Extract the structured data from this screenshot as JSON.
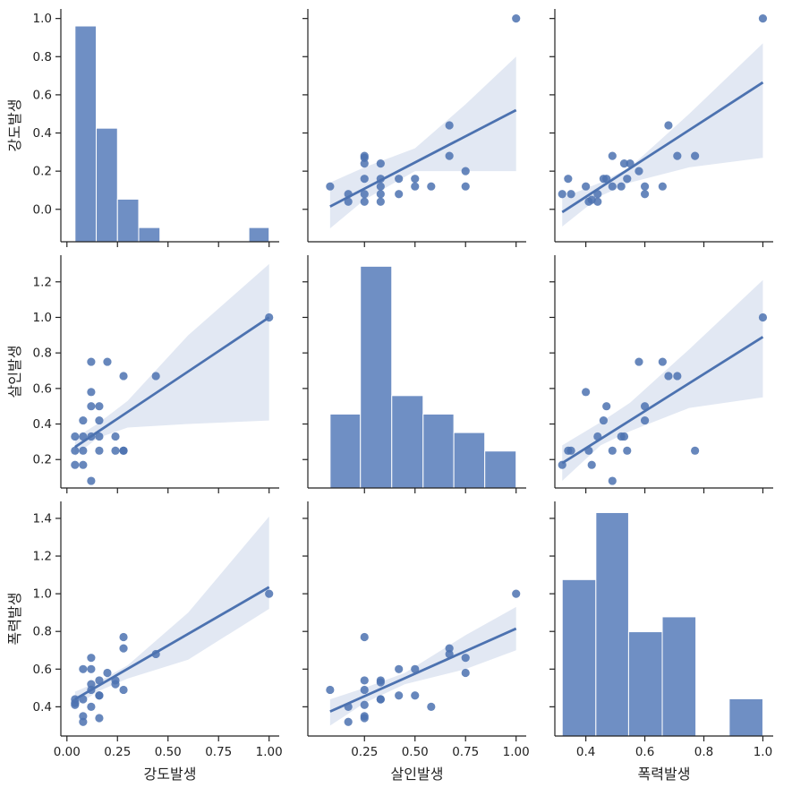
{
  "chart_data": {
    "type": "pairplot",
    "variables": [
      "강도발생",
      "살인발생",
      "폭력발생"
    ],
    "colors": {
      "point": "#4c72b0",
      "bar": "#6f8fc4",
      "band": "#e2e8f3",
      "line": "#4c72b0",
      "axis": "#222222"
    },
    "axes": {
      "강도발생": {
        "label": "강도발생",
        "range": [
          -0.03,
          1.05
        ],
        "ticks": [
          0.0,
          0.25,
          0.5,
          0.75,
          1.0
        ],
        "tick_labels": [
          "0.00",
          "0.25",
          "0.50",
          "0.75",
          "1.00"
        ]
      },
      "살인발생": {
        "label": "살인발생",
        "range": [
          -0.03,
          1.05
        ],
        "ticks": [
          0.25,
          0.5,
          0.75,
          1.0
        ],
        "tick_labels": [
          "0.25",
          "0.50",
          "0.75",
          "1.00"
        ]
      },
      "폭력발생": {
        "label": "폭력발생",
        "range": [
          0.295,
          1.035
        ],
        "ticks": [
          0.4,
          0.6,
          0.8,
          1.0
        ],
        "tick_labels": [
          "0.4",
          "0.6",
          "0.8",
          "1.0"
        ]
      }
    },
    "y_axes": [
      {
        "label": "강도발생",
        "range": [
          -0.17,
          1.05
        ],
        "ticks": [
          0.0,
          0.2,
          0.4,
          0.6,
          0.8,
          1.0
        ],
        "tick_labels": [
          "0.0",
          "0.2",
          "0.4",
          "0.6",
          "0.8",
          "1.0"
        ]
      },
      {
        "label": "살인발생",
        "range": [
          0.04,
          1.35
        ],
        "ticks": [
          0.2,
          0.4,
          0.6,
          0.8,
          1.0,
          1.2
        ],
        "tick_labels": [
          "0.2",
          "0.4",
          "0.6",
          "0.8",
          "1.0",
          "1.2"
        ]
      },
      {
        "label": "폭력발생",
        "range": [
          0.245,
          1.49
        ],
        "ticks": [
          0.4,
          0.6,
          0.8,
          1.0,
          1.2,
          1.4
        ],
        "tick_labels": [
          "0.4",
          "0.6",
          "0.8",
          "1.0",
          "1.2",
          "1.4"
        ]
      }
    ],
    "histograms": [
      {
        "variable": "강도발생",
        "bins": [
          [
            0.04,
            0.145,
            7.6
          ],
          [
            0.145,
            0.25,
            4.0
          ],
          [
            0.25,
            0.355,
            1.5
          ],
          [
            0.355,
            0.46,
            0.5
          ],
          [
            0.9,
            1.0,
            0.5
          ]
        ],
        "count_range": [
          0,
          8.2
        ]
      },
      {
        "variable": "살인발생",
        "bins": [
          [
            0.08,
            0.23,
            4.0
          ],
          [
            0.23,
            0.385,
            12.0
          ],
          [
            0.385,
            0.54,
            5.0
          ],
          [
            0.54,
            0.692,
            4.0
          ],
          [
            0.692,
            0.845,
            3.0
          ],
          [
            0.845,
            1.0,
            2.0
          ]
        ],
        "count_range": [
          0,
          12.6
        ]
      },
      {
        "variable": "폭력발생",
        "bins": [
          [
            0.32,
            0.434,
            4.2
          ],
          [
            0.434,
            0.545,
            6.0
          ],
          [
            0.545,
            0.659,
            2.8
          ],
          [
            0.659,
            0.773,
            3.2
          ],
          [
            0.886,
            1.0,
            1.0
          ]
        ],
        "count_range": [
          0,
          6.3
        ]
      }
    ],
    "scatter": [
      {
        "x": "살인발생",
        "y": "강도발생",
        "points": [
          [
            0.08,
            0.12
          ],
          [
            0.17,
            0.04
          ],
          [
            0.17,
            0.08
          ],
          [
            0.25,
            0.28
          ],
          [
            0.25,
            0.27
          ],
          [
            0.25,
            0.24
          ],
          [
            0.25,
            0.16
          ],
          [
            0.25,
            0.08
          ],
          [
            0.25,
            0.04
          ],
          [
            0.33,
            0.24
          ],
          [
            0.33,
            0.16
          ],
          [
            0.33,
            0.12
          ],
          [
            0.33,
            0.08
          ],
          [
            0.33,
            0.04
          ],
          [
            0.42,
            0.16
          ],
          [
            0.42,
            0.08
          ],
          [
            0.5,
            0.16
          ],
          [
            0.5,
            0.12
          ],
          [
            0.58,
            0.12
          ],
          [
            0.67,
            0.44
          ],
          [
            0.67,
            0.28
          ],
          [
            0.75,
            0.2
          ],
          [
            0.75,
            0.12
          ],
          [
            1.0,
            1.0
          ]
        ],
        "fit": [
          0.08,
          0.015,
          1.0,
          0.52
        ],
        "band": [
          [
            0.08,
            -0.1,
            0.14
          ],
          [
            0.25,
            0.05,
            0.22
          ],
          [
            0.5,
            0.2,
            0.32
          ],
          [
            0.75,
            0.2,
            0.55
          ],
          [
            1.0,
            0.2,
            0.8
          ]
        ]
      },
      {
        "x": "폭력발생",
        "y": "강도발생",
        "points": [
          [
            0.32,
            0.08
          ],
          [
            0.34,
            0.16
          ],
          [
            0.35,
            0.08
          ],
          [
            0.4,
            0.12
          ],
          [
            0.41,
            0.04
          ],
          [
            0.42,
            0.05
          ],
          [
            0.44,
            0.04
          ],
          [
            0.44,
            0.08
          ],
          [
            0.46,
            0.16
          ],
          [
            0.47,
            0.16
          ],
          [
            0.49,
            0.28
          ],
          [
            0.49,
            0.12
          ],
          [
            0.52,
            0.12
          ],
          [
            0.53,
            0.24
          ],
          [
            0.54,
            0.16
          ],
          [
            0.55,
            0.24
          ],
          [
            0.58,
            0.2
          ],
          [
            0.6,
            0.12
          ],
          [
            0.6,
            0.08
          ],
          [
            0.66,
            0.12
          ],
          [
            0.68,
            0.44
          ],
          [
            0.71,
            0.28
          ],
          [
            0.77,
            0.28
          ],
          [
            1.0,
            1.0
          ]
        ],
        "fit": [
          0.32,
          -0.015,
          1.0,
          0.665
        ],
        "band": [
          [
            0.32,
            -0.09,
            0.06
          ],
          [
            0.45,
            0.07,
            0.14
          ],
          [
            0.55,
            0.14,
            0.22
          ],
          [
            0.75,
            0.22,
            0.5
          ],
          [
            1.0,
            0.27,
            0.87
          ]
        ]
      },
      {
        "x": "강도발생",
        "y": "살인발생",
        "points": [
          [
            0.04,
            0.33
          ],
          [
            0.04,
            0.25
          ],
          [
            0.04,
            0.17
          ],
          [
            0.08,
            0.42
          ],
          [
            0.08,
            0.33
          ],
          [
            0.08,
            0.25
          ],
          [
            0.08,
            0.17
          ],
          [
            0.12,
            0.75
          ],
          [
            0.12,
            0.58
          ],
          [
            0.12,
            0.5
          ],
          [
            0.12,
            0.33
          ],
          [
            0.12,
            0.08
          ],
          [
            0.16,
            0.5
          ],
          [
            0.16,
            0.42
          ],
          [
            0.16,
            0.33
          ],
          [
            0.16,
            0.25
          ],
          [
            0.2,
            0.75
          ],
          [
            0.24,
            0.33
          ],
          [
            0.24,
            0.25
          ],
          [
            0.28,
            0.67
          ],
          [
            0.28,
            0.25
          ],
          [
            0.28,
            0.25
          ],
          [
            0.44,
            0.67
          ],
          [
            1.0,
            1.0
          ]
        ],
        "fit": [
          0.04,
          0.27,
          1.0,
          1.0
        ],
        "band": [
          [
            0.04,
            0.22,
            0.32
          ],
          [
            0.15,
            0.32,
            0.4
          ],
          [
            0.3,
            0.38,
            0.53
          ],
          [
            0.6,
            0.4,
            0.9
          ],
          [
            1.0,
            0.42,
            1.3
          ]
        ]
      },
      {
        "x": "폭력발생",
        "y": "살인발생",
        "points": [
          [
            0.32,
            0.17
          ],
          [
            0.34,
            0.25
          ],
          [
            0.35,
            0.25
          ],
          [
            0.4,
            0.58
          ],
          [
            0.41,
            0.25
          ],
          [
            0.42,
            0.17
          ],
          [
            0.44,
            0.33
          ],
          [
            0.46,
            0.42
          ],
          [
            0.47,
            0.5
          ],
          [
            0.49,
            0.25
          ],
          [
            0.49,
            0.08
          ],
          [
            0.52,
            0.33
          ],
          [
            0.53,
            0.33
          ],
          [
            0.54,
            0.25
          ],
          [
            0.58,
            0.75
          ],
          [
            0.6,
            0.5
          ],
          [
            0.6,
            0.42
          ],
          [
            0.66,
            0.75
          ],
          [
            0.68,
            0.67
          ],
          [
            0.71,
            0.67
          ],
          [
            0.77,
            0.25
          ],
          [
            1.0,
            1.0
          ]
        ],
        "fit": [
          0.32,
          0.18,
          1.0,
          0.89
        ],
        "band": [
          [
            0.32,
            0.08,
            0.28
          ],
          [
            0.45,
            0.28,
            0.41
          ],
          [
            0.55,
            0.36,
            0.52
          ],
          [
            0.75,
            0.49,
            0.82
          ],
          [
            1.0,
            0.55,
            1.21
          ]
        ]
      },
      {
        "x": "강도발생",
        "y": "폭력발생",
        "points": [
          [
            0.04,
            0.44
          ],
          [
            0.04,
            0.42
          ],
          [
            0.04,
            0.41
          ],
          [
            0.08,
            0.6
          ],
          [
            0.08,
            0.44
          ],
          [
            0.08,
            0.35
          ],
          [
            0.08,
            0.32
          ],
          [
            0.12,
            0.66
          ],
          [
            0.12,
            0.6
          ],
          [
            0.12,
            0.52
          ],
          [
            0.12,
            0.49
          ],
          [
            0.12,
            0.4
          ],
          [
            0.16,
            0.54
          ],
          [
            0.16,
            0.46
          ],
          [
            0.16,
            0.46
          ],
          [
            0.16,
            0.34
          ],
          [
            0.2,
            0.58
          ],
          [
            0.24,
            0.54
          ],
          [
            0.24,
            0.52
          ],
          [
            0.28,
            0.77
          ],
          [
            0.28,
            0.71
          ],
          [
            0.28,
            0.49
          ],
          [
            0.44,
            0.68
          ],
          [
            1.0,
            1.0
          ]
        ],
        "fit": [
          0.04,
          0.44,
          1.0,
          1.035
        ],
        "band": [
          [
            0.04,
            0.4,
            0.48
          ],
          [
            0.15,
            0.48,
            0.53
          ],
          [
            0.3,
            0.55,
            0.62
          ],
          [
            0.6,
            0.65,
            0.9
          ],
          [
            1.0,
            0.92,
            1.41
          ]
        ]
      },
      {
        "x": "살인발생",
        "y": "폭력발생",
        "points": [
          [
            0.08,
            0.49
          ],
          [
            0.17,
            0.32
          ],
          [
            0.17,
            0.4
          ],
          [
            0.25,
            0.77
          ],
          [
            0.25,
            0.54
          ],
          [
            0.25,
            0.49
          ],
          [
            0.25,
            0.41
          ],
          [
            0.25,
            0.35
          ],
          [
            0.25,
            0.34
          ],
          [
            0.33,
            0.54
          ],
          [
            0.33,
            0.53
          ],
          [
            0.33,
            0.44
          ],
          [
            0.33,
            0.44
          ],
          [
            0.42,
            0.6
          ],
          [
            0.42,
            0.46
          ],
          [
            0.5,
            0.6
          ],
          [
            0.5,
            0.46
          ],
          [
            0.58,
            0.4
          ],
          [
            0.67,
            0.71
          ],
          [
            0.67,
            0.68
          ],
          [
            0.75,
            0.66
          ],
          [
            0.75,
            0.58
          ],
          [
            1.0,
            1.0
          ]
        ],
        "fit": [
          0.08,
          0.375,
          1.0,
          0.815
        ],
        "band": [
          [
            0.08,
            0.3,
            0.44
          ],
          [
            0.25,
            0.42,
            0.5
          ],
          [
            0.45,
            0.52,
            0.58
          ],
          [
            0.75,
            0.6,
            0.78
          ],
          [
            1.0,
            0.7,
            0.93
          ]
        ]
      }
    ]
  }
}
